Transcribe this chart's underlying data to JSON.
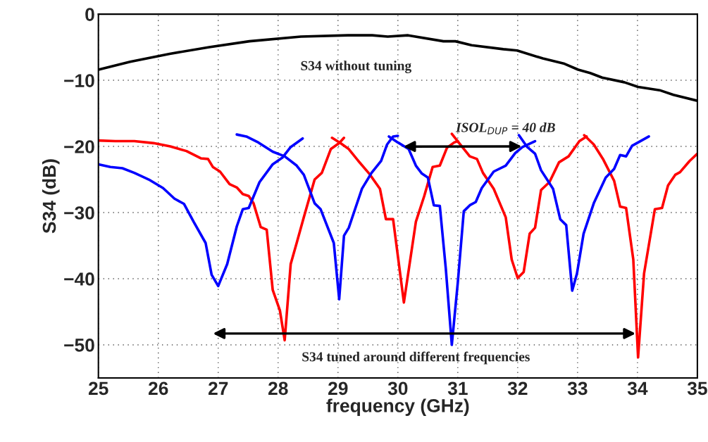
{
  "chart_data": {
    "type": "line",
    "xlabel": "frequency (GHz)",
    "ylabel": "S34 (dB)",
    "xlim": [
      25,
      35
    ],
    "ylim": [
      -55,
      0
    ],
    "xticks": [
      25,
      26,
      27,
      28,
      29,
      30,
      31,
      32,
      33,
      34,
      35
    ],
    "yticks": [
      -50,
      -40,
      -30,
      -20,
      -10,
      0
    ],
    "grid": true,
    "marker": "none",
    "line_style": "solid",
    "series": [
      {
        "color": "#000000",
        "x": [
          25,
          25.53,
          26.19,
          26.85,
          27.52,
          28.38,
          29.17,
          29.57,
          29.83,
          30.17,
          30.76,
          30.96,
          31.23,
          31.76,
          31.99,
          32.42,
          32.78,
          33.01,
          33.21,
          33.41,
          33.78,
          34.01,
          34.37,
          34.6,
          35
        ],
        "values": [
          -8.4,
          -7.2,
          -6,
          -5,
          -4.1,
          -3.4,
          -3.2,
          -3.2,
          -3.4,
          -3.2,
          -4.1,
          -4.1,
          -4.7,
          -5.3,
          -5.5,
          -6.7,
          -7.5,
          -8.4,
          -8.9,
          -9.6,
          -10.3,
          -11,
          -11.5,
          -12.2,
          -13.1
        ]
      },
      {
        "color": "#ff0000",
        "x": [
          25,
          25.28,
          25.6,
          25.92,
          26.2,
          26.47,
          26.71,
          26.83,
          26.91,
          27.03,
          27.19,
          27.31,
          27.41,
          27.51,
          27.59,
          27.71,
          27.81,
          27.91,
          28.03,
          28.11,
          28.21,
          28.31,
          28.43,
          28.61,
          28.73,
          28.88,
          29.02,
          29.1
        ],
        "values": [
          -19.1,
          -19.2,
          -19.2,
          -19.5,
          -20,
          -20.7,
          -21.8,
          -21.9,
          -23.1,
          -23.8,
          -25.7,
          -26.2,
          -27.2,
          -27.5,
          -28.6,
          -32.2,
          -32.6,
          -41.7,
          -44.8,
          -49.3,
          -37.8,
          -34.6,
          -30.7,
          -25,
          -24,
          -20.4,
          -19.5,
          -18.7
        ]
      },
      {
        "color": "#ff0000",
        "x": [
          28.9,
          29.04,
          29.18,
          29.34,
          29.52,
          29.7,
          29.8,
          29.92,
          30.1,
          30.3,
          30.44,
          30.58,
          30.7,
          30.82,
          30.94,
          31.0
        ],
        "values": [
          -18.7,
          -19.5,
          -20.4,
          -22.2,
          -24.1,
          -26.4,
          -31,
          -31,
          -43.6,
          -31.4,
          -27.5,
          -23.1,
          -22.9,
          -20.2,
          -19.4,
          -19.2
        ]
      },
      {
        "color": "#ff0000",
        "x": [
          30.9,
          31.04,
          31.2,
          31.32,
          31.42,
          31.6,
          31.8,
          31.9,
          32.0,
          32.1,
          32.2,
          32.29,
          32.39,
          32.53,
          32.69,
          32.85,
          33.03,
          33.15
        ],
        "values": [
          -18.1,
          -19.7,
          -21.5,
          -21.9,
          -24,
          -26.4,
          -30.7,
          -37.1,
          -39.9,
          -39,
          -33.2,
          -32.3,
          -26.6,
          -25.4,
          -22.4,
          -21.5,
          -19.2,
          -18.5
        ]
      },
      {
        "color": "#ff0000",
        "x": [
          33.11,
          33.27,
          33.43,
          33.61,
          33.71,
          33.81,
          33.93,
          34.01,
          34.11,
          34.29,
          34.41,
          34.51,
          34.63,
          34.71,
          34.87,
          35
        ],
        "values": [
          -18.3,
          -19.7,
          -22,
          -25.2,
          -29.1,
          -29.3,
          -37.1,
          -51.9,
          -39.2,
          -29.5,
          -29.3,
          -25.9,
          -24.3,
          -23.9,
          -22.2,
          -21.1
        ]
      },
      {
        "color": "#0000ff",
        "x": [
          25,
          25.2,
          25.4,
          25.6,
          25.84,
          26.08,
          26.27,
          26.43,
          26.59,
          26.79,
          26.89,
          27.0,
          27.15,
          27.31,
          27.41,
          27.51,
          27.69,
          27.91,
          28.07,
          28.21,
          28.41
        ],
        "values": [
          -22.7,
          -23.1,
          -23.3,
          -24,
          -25,
          -26.3,
          -27.9,
          -28.7,
          -31.4,
          -34.6,
          -39.4,
          -41.1,
          -37.8,
          -32.1,
          -29.5,
          -29.3,
          -25.4,
          -22.7,
          -21.7,
          -20.1,
          -18.8
        ]
      },
      {
        "color": "#0000ff",
        "x": [
          27.31,
          27.47,
          27.67,
          27.91,
          28.11,
          28.31,
          28.43,
          28.61,
          28.71,
          28.93,
          29.02,
          29.1,
          29.18,
          29.4,
          29.56,
          29.72,
          29.82,
          29.92,
          30.0
        ],
        "values": [
          -18.2,
          -18.5,
          -19.4,
          -20.8,
          -21.5,
          -22.9,
          -24.3,
          -28.6,
          -29.5,
          -34.6,
          -43.1,
          -33.5,
          -32.3,
          -26.4,
          -24,
          -22.2,
          -19.7,
          -18.5,
          -18.4
        ]
      },
      {
        "color": "#0000ff",
        "x": [
          29.85,
          30.0,
          30.18,
          30.3,
          30.4,
          30.5,
          30.6,
          30.7,
          30.8,
          30.9,
          31.0,
          31.1,
          31.2,
          31.3,
          31.4,
          31.6,
          31.8,
          31.96,
          32.08,
          32.29
        ],
        "values": [
          -18.5,
          -19.4,
          -20.4,
          -22.9,
          -24.1,
          -24.7,
          -28.9,
          -29,
          -38.5,
          -50,
          -40.6,
          -29.8,
          -28.9,
          -28.4,
          -26.3,
          -23.8,
          -22.9,
          -21,
          -20.1,
          -19.2
        ]
      },
      {
        "color": "#0000ff",
        "x": [
          32.02,
          32.16,
          32.29,
          32.39,
          32.59,
          32.71,
          32.81,
          32.91,
          32.99,
          33.1,
          33.27,
          33.47,
          33.61,
          33.71,
          33.81,
          33.91,
          34.19
        ],
        "values": [
          -18.3,
          -20.1,
          -21.1,
          -23.6,
          -26.4,
          -31,
          -31.9,
          -41.8,
          -39.2,
          -33.2,
          -28.6,
          -24.7,
          -23.4,
          -21.3,
          -21.5,
          -19.9,
          -18.5
        ]
      }
    ],
    "annotations": [
      "S34 without tuning",
      {
        "text": "ISOL$_{DUP}$ = 40 dB",
        "x": 32.1,
        "y": -20
      },
      "S34 tuned around different frequencies"
    ]
  }
}
